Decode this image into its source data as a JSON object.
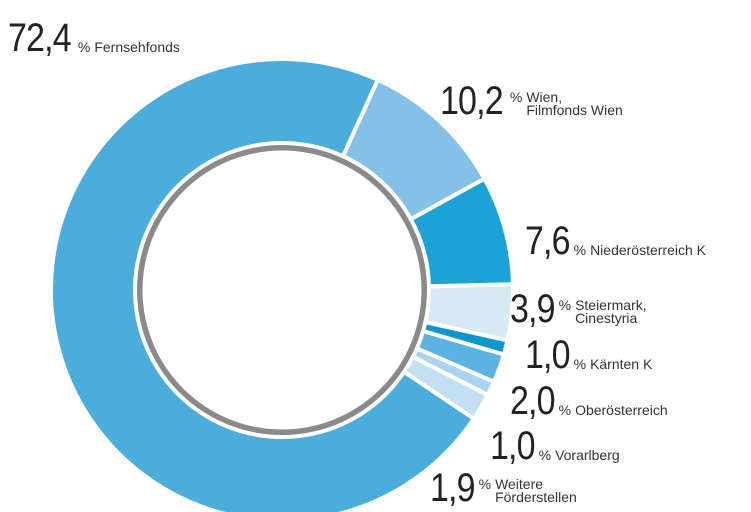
{
  "chart_data": {
    "type": "donut",
    "unit": "%",
    "categories": [
      "Fernsehfonds",
      "Wien,\nFilmfonds Wien",
      "Niederösterreich K",
      "Steiermark,\nCinestyria",
      "Kärnten K",
      "Oberösterreich",
      "Vorarlberg",
      "Weitere\nFörderstellen"
    ],
    "values": [
      72.4,
      10.2,
      7.6,
      3.9,
      1.0,
      2.0,
      1.0,
      1.9
    ],
    "value_labels": [
      "72,4",
      "10,2",
      "7,6",
      "3,9",
      "1,0",
      "2,0",
      "1,0",
      "1,9"
    ],
    "colors": [
      "#4aaddc",
      "#85c1e6",
      "#1da2d8",
      "#d6e9f5",
      "#0e95cf",
      "#5ab3e0",
      "#a9d3ef",
      "#c3e0f3"
    ]
  }
}
